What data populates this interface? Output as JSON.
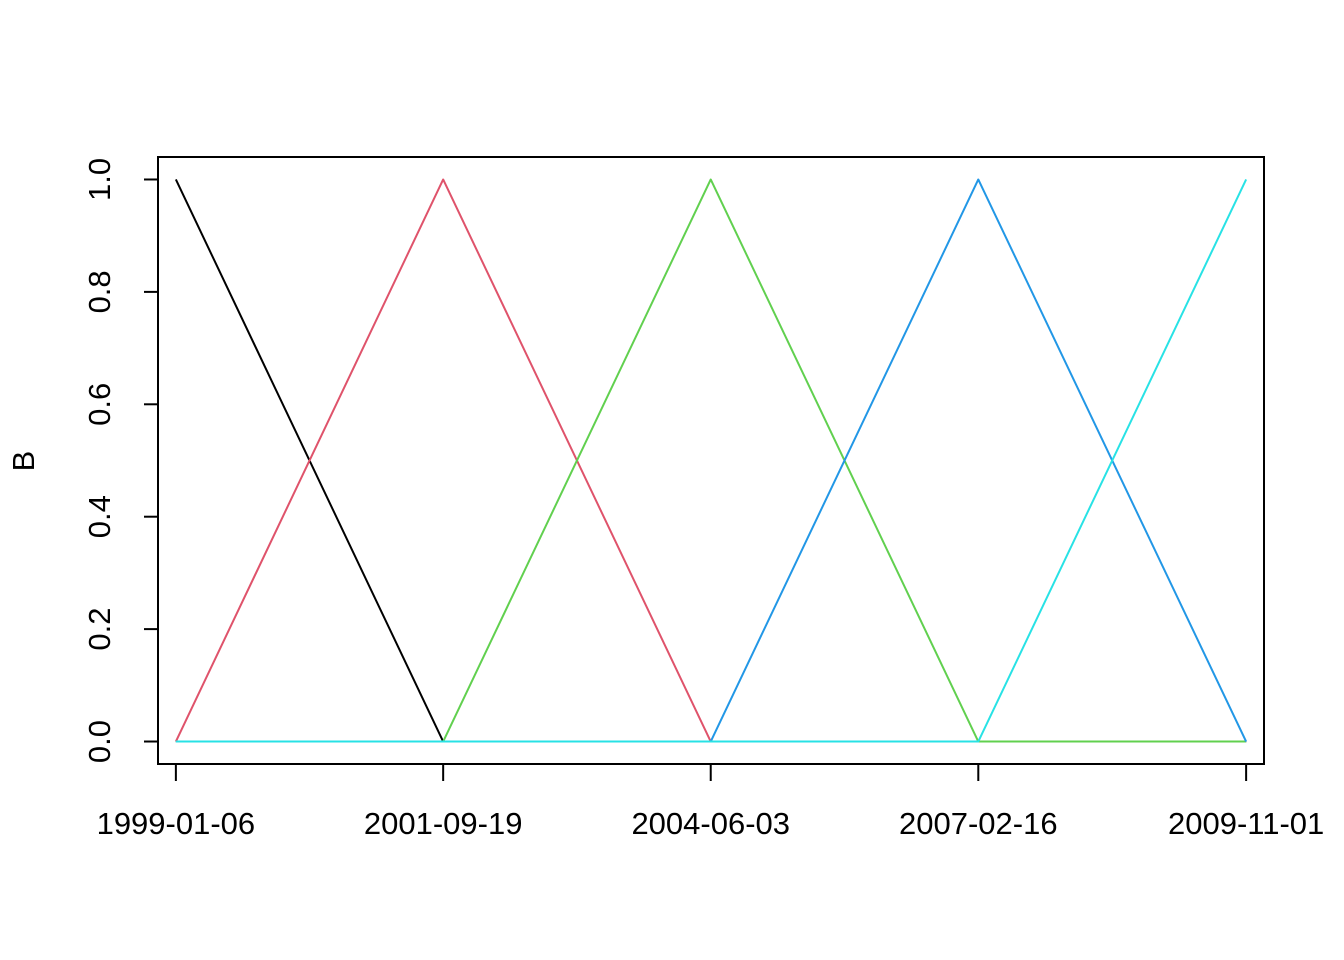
{
  "chart_data": {
    "type": "line",
    "title": "",
    "xlabel": "",
    "ylabel": "B",
    "x_ticks": [
      "1999-01-06",
      "2001-09-19",
      "2004-06-03",
      "2007-02-16",
      "2009-11-01"
    ],
    "y_ticks": [
      "0.0",
      "0.2",
      "0.4",
      "0.6",
      "0.8",
      "1.0"
    ],
    "y_tick_values": [
      0,
      0.2,
      0.4,
      0.6,
      0.8,
      1.0
    ],
    "ylim": [
      -0.04,
      1.04
    ],
    "xlim": [
      "1998-11-01",
      "2010-01-06"
    ],
    "grid": false,
    "legend": "none",
    "series": [
      {
        "color": "#000000",
        "x": [
          "1999-01-06",
          "2001-09-19",
          "2009-11-01"
        ],
        "values": [
          1,
          0,
          0
        ]
      },
      {
        "color": "#DF536B",
        "x": [
          "1999-01-06",
          "2001-09-19",
          "2004-06-03",
          "2009-11-01"
        ],
        "values": [
          0,
          1,
          0,
          0
        ]
      },
      {
        "color": "#61D04F",
        "x": [
          "1999-01-06",
          "2001-09-19",
          "2004-06-03",
          "2007-02-16",
          "2009-11-01"
        ],
        "values": [
          0,
          0,
          1,
          0,
          0
        ]
      },
      {
        "color": "#2297E6",
        "x": [
          "1999-01-06",
          "2004-06-03",
          "2007-02-16",
          "2009-11-01"
        ],
        "values": [
          0,
          0,
          1,
          0
        ]
      },
      {
        "color": "#28E2E5",
        "x": [
          "1999-01-06",
          "2007-02-16",
          "2009-11-01"
        ],
        "values": [
          0,
          0,
          1
        ]
      }
    ]
  }
}
